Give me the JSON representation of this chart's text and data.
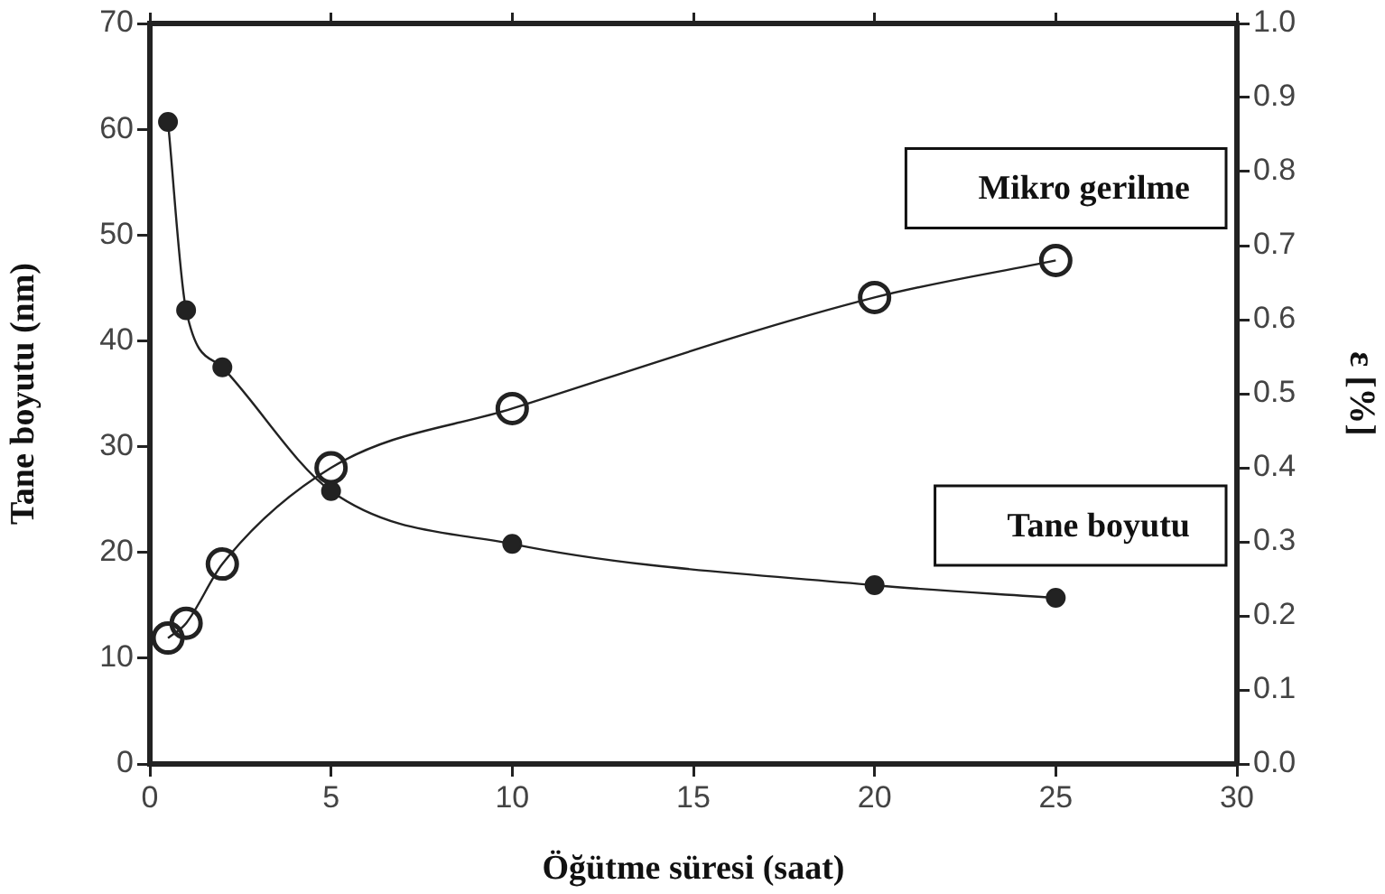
{
  "chart_data": {
    "type": "line",
    "xlabel": "Öğütme süresi (saat)",
    "ylabel": "Tane boyutu (nm)",
    "y2label": "ε [%]",
    "xlim": [
      0,
      30
    ],
    "xticks": [
      0,
      5,
      10,
      15,
      20,
      25,
      30
    ],
    "ylim": [
      0,
      70
    ],
    "yticks": [
      0,
      10,
      20,
      30,
      40,
      50,
      60,
      70
    ],
    "y2lim": [
      0,
      1
    ],
    "y2ticks": [
      {
        "value": 0,
        "label": "0.0"
      },
      0.1,
      0.2,
      0.3,
      0.4,
      0.5,
      0.6,
      0.7,
      0.8,
      0.9,
      {
        "value": 1,
        "label": "1.0"
      }
    ],
    "grid": false,
    "legend": false,
    "marker": "circle",
    "series": [
      {
        "name": "Tane boyutu",
        "color": "#222222",
        "x": [
          0.5,
          1,
          2,
          5,
          10,
          20,
          25
        ],
        "values": [
          60.7,
          42.9,
          37.5,
          25.8,
          20.8,
          16.9,
          15.7
        ]
      },
      {
        "name": "Mikro gerilme",
        "color": "#222222",
        "axis": "y2",
        "x": [
          0.5,
          1,
          2,
          5,
          10,
          20,
          25
        ],
        "values": [
          0.17,
          0.19,
          0.27,
          0.4,
          0.48,
          0.63,
          0.68
        ]
      }
    ]
  }
}
